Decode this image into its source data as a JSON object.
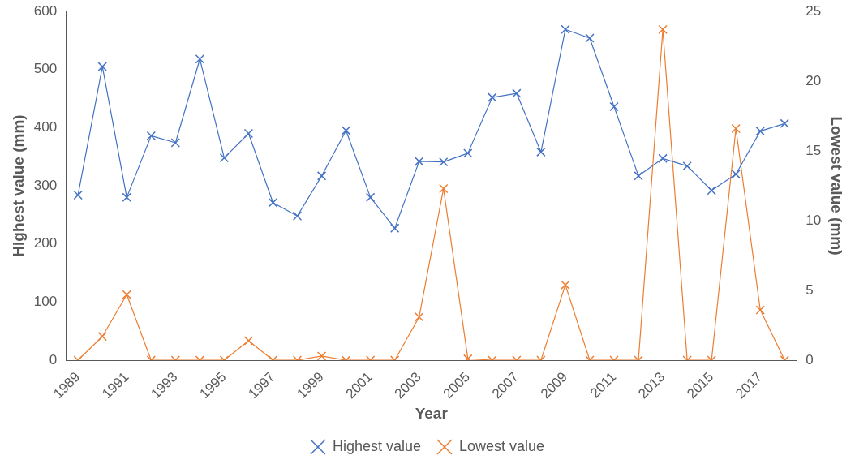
{
  "chart_data": {
    "type": "line",
    "xlabel": "Year",
    "ylabel": "Highest value (mm)",
    "y2label": "Lowest value (mm)",
    "categories": [
      "1989",
      null,
      "1991",
      null,
      "1993",
      null,
      "1995",
      null,
      "1997",
      null,
      "1999",
      null,
      "2001",
      null,
      "2003",
      null,
      "2005",
      null,
      "2007",
      null,
      "2009",
      null,
      "2011",
      null,
      "2013",
      null,
      "2015",
      null,
      "2017",
      null
    ],
    "series": [
      {
        "name": "Highest value",
        "color": "#4472c4",
        "values": [
          284,
          505,
          280,
          386,
          374,
          518,
          348,
          390,
          271,
          248,
          317,
          395,
          280,
          227,
          342,
          341,
          356,
          452,
          459,
          358,
          569,
          554,
          436,
          317,
          347,
          334,
          292,
          320,
          394,
          407
        ]
      },
      {
        "name": "Lowest value",
        "color": "#ed7d31",
        "axis": "y2",
        "values": [
          0,
          1.7,
          4.7,
          0,
          0,
          0,
          0,
          1.4,
          0,
          0,
          0.3,
          0,
          0,
          0,
          3.1,
          12.3,
          0.1,
          0,
          0,
          0,
          5.4,
          0,
          0,
          0,
          23.7,
          0,
          0,
          16.6,
          3.6,
          0
        ]
      }
    ],
    "ylim": [
      0,
      600
    ],
    "yticks": [
      0,
      100,
      200,
      300,
      400,
      500,
      600
    ],
    "y2lim": [
      0,
      25
    ],
    "y2ticks": [
      0,
      5,
      10,
      15,
      20,
      25
    ],
    "grid": false,
    "legend": "bottom",
    "marker": "cross",
    "line_style": "solid"
  }
}
